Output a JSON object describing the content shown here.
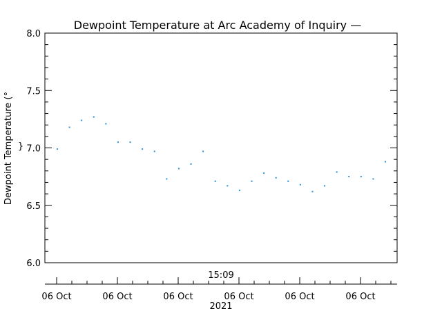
{
  "chart_data": {
    "type": "scatter",
    "title": "Dewpoint Temperature at Arc Academy of Inquiry —",
    "ylabel": "Dewpoint Temperature (°",
    "ylabel_glyph": "}",
    "xlabel": "",
    "ylim": [
      6.0,
      8.0
    ],
    "y_ticks": [
      6.0,
      6.5,
      7.0,
      7.5,
      8.0
    ],
    "y_tick_labels": [
      "6.0",
      "6.5",
      "7.0",
      "7.5",
      "8.0"
    ],
    "x_tick_labels": [
      "06 Oct",
      "06 Oct",
      "06 Oct",
      "06 Oct",
      "06 Oct",
      "06 Oct"
    ],
    "time_label": "15:09",
    "year_label": "2021",
    "marker_color": "#2a8fd6",
    "grid": false,
    "series": [
      {
        "values": [
          6.99,
          7.18,
          7.24,
          7.27,
          7.21,
          7.05,
          7.05,
          6.99,
          6.97,
          6.73,
          6.82,
          6.86,
          6.97,
          6.71,
          6.67,
          6.63,
          6.71,
          6.78,
          6.74,
          6.71,
          6.68,
          6.62,
          6.67,
          6.79,
          6.75,
          6.75,
          6.73,
          6.88
        ]
      }
    ]
  }
}
